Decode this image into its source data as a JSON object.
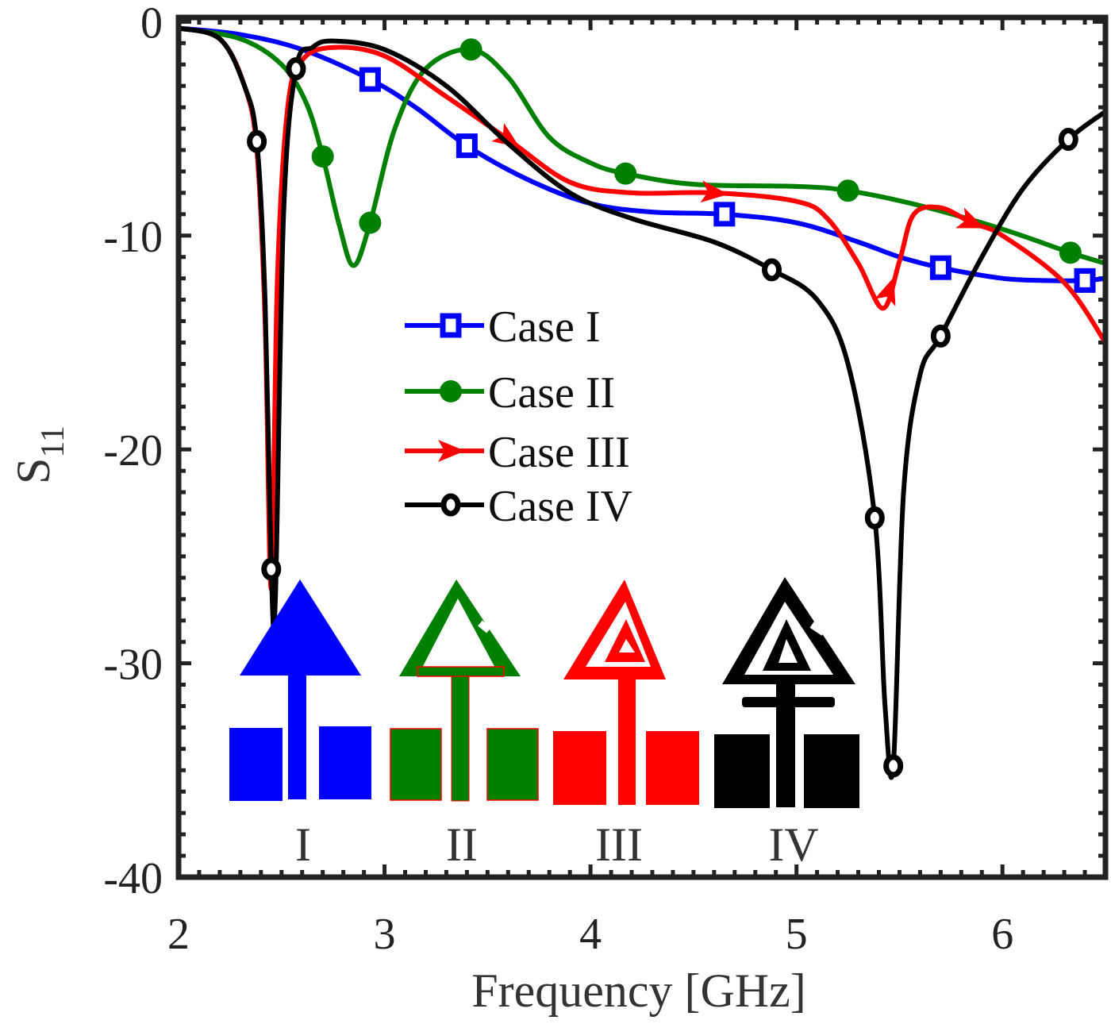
{
  "chart_data": {
    "type": "line",
    "title": "",
    "xlabel": "Frequency [GHz]",
    "ylabel": "S",
    "ylabel_subscript": "11",
    "xlim": [
      2,
      6.5
    ],
    "ylim": [
      -40,
      0.2
    ],
    "xticks": [
      2,
      3,
      4,
      5,
      6
    ],
    "yticks": [
      0,
      -10,
      -20,
      -30,
      -40
    ],
    "xtick_labels": [
      "2",
      "3",
      "4",
      "5",
      "6"
    ],
    "ytick_labels": [
      "0",
      "-10",
      "-20",
      "-30",
      "-40"
    ],
    "grid": false,
    "legend_position": "center",
    "series": [
      {
        "name": "Case I",
        "color": "#0000ff",
        "marker": "square-open",
        "x": [
          2,
          2.3,
          2.6,
          2.93,
          3.15,
          3.4,
          3.7,
          4.0,
          4.3,
          4.65,
          5.0,
          5.3,
          5.5,
          5.7,
          6.0,
          6.2,
          6.4,
          6.5
        ],
        "y": [
          -0.3,
          -0.6,
          -1.3,
          -2.7,
          -4.0,
          -5.8,
          -7.4,
          -8.5,
          -8.9,
          -9.0,
          -9.4,
          -10.3,
          -11.0,
          -11.5,
          -12.0,
          -12.1,
          -12.1,
          -12.0
        ],
        "markers_x": [
          2.93,
          3.4,
          4.65,
          5.7,
          6.4
        ]
      },
      {
        "name": "Case II",
        "color": "#008000",
        "marker": "circle-filled",
        "x": [
          2,
          2.3,
          2.5,
          2.62,
          2.7,
          2.78,
          2.85,
          2.93,
          3.05,
          3.2,
          3.42,
          3.6,
          3.8,
          4.0,
          4.17,
          4.5,
          5.0,
          5.25,
          5.6,
          6.0,
          6.33,
          6.5
        ],
        "y": [
          -0.3,
          -0.8,
          -2.0,
          -3.8,
          -6.3,
          -9.5,
          -11.4,
          -9.4,
          -5.0,
          -2.2,
          -1.3,
          -2.6,
          -5.4,
          -6.6,
          -7.1,
          -7.6,
          -7.7,
          -7.9,
          -8.6,
          -9.7,
          -10.8,
          -11.3
        ],
        "markers_x": [
          2.7,
          2.93,
          3.42,
          4.17,
          5.25,
          6.33
        ]
      },
      {
        "name": "Case III",
        "color": "#ff0000",
        "marker": "arrow",
        "x": [
          2,
          2.2,
          2.32,
          2.38,
          2.42,
          2.45,
          2.48,
          2.53,
          2.6,
          2.75,
          3.0,
          3.3,
          3.6,
          3.9,
          4.2,
          4.6,
          5.0,
          5.15,
          5.3,
          5.42,
          5.5,
          5.57,
          5.7,
          5.85,
          6.0,
          6.3,
          6.5
        ],
        "y": [
          -0.3,
          -0.8,
          -3.0,
          -6.0,
          -14.0,
          -26.5,
          -12.0,
          -4.0,
          -1.8,
          -1.2,
          -1.6,
          -3.5,
          -5.5,
          -7.5,
          -8.0,
          -8.0,
          -8.4,
          -9.2,
          -11.3,
          -13.4,
          -11.2,
          -9.0,
          -8.7,
          -9.4,
          -10.0,
          -12.2,
          -15.0
        ],
        "markers_x": [
          3.6,
          4.6,
          5.45,
          5.85
        ]
      },
      {
        "name": "Case IV",
        "color": "#000000",
        "marker": "circle-open",
        "x": [
          2,
          2.2,
          2.32,
          2.38,
          2.42,
          2.45,
          2.47,
          2.51,
          2.57,
          2.65,
          2.75,
          3.0,
          3.3,
          3.6,
          3.9,
          4.2,
          4.6,
          4.88,
          5.1,
          5.25,
          5.38,
          5.43,
          5.47,
          5.52,
          5.6,
          5.7,
          5.9,
          6.1,
          6.32,
          6.5
        ],
        "y": [
          -0.3,
          -0.8,
          -3.0,
          -5.6,
          -13.0,
          -25.6,
          -27.0,
          -9.0,
          -2.2,
          -1.2,
          -0.9,
          -1.3,
          -3.0,
          -5.7,
          -8.0,
          -9.2,
          -10.3,
          -11.6,
          -13.0,
          -16.0,
          -23.2,
          -32.0,
          -34.8,
          -22.0,
          -16.5,
          -14.7,
          -11.0,
          -7.8,
          -5.5,
          -4.2
        ],
        "markers_x": [
          2.38,
          2.45,
          2.57,
          4.88,
          5.38,
          5.47,
          5.7,
          6.32
        ]
      }
    ],
    "inset_labels": [
      "I",
      "II",
      "III",
      "IV"
    ]
  }
}
